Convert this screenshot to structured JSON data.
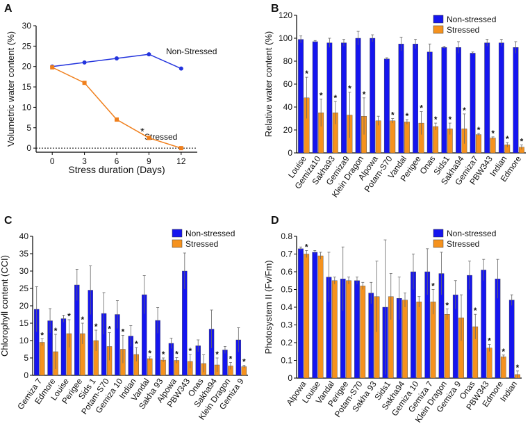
{
  "colors": {
    "nonstressed": "#1515ee",
    "stressed": "#f5921e",
    "line_non": "#2233dd",
    "line_str": "#f07f1c"
  },
  "chart_data": [
    {
      "panel": "A",
      "type": "line",
      "xlabel": "Stress duration (Days)",
      "ylabel": "Volumetric water content (%)",
      "x": [
        0,
        3,
        6,
        9,
        12
      ],
      "xticks": [
        "0",
        "3",
        "6",
        "9",
        "12"
      ],
      "yticks": [
        "0",
        "5",
        "10",
        "15",
        "20",
        "25",
        "30"
      ],
      "xlim": [
        -1.5,
        13.5
      ],
      "ylim": [
        -1,
        30
      ],
      "series": [
        {
          "name": "Non-Stressed",
          "values": [
            20,
            21,
            22,
            23,
            19.5
          ]
        },
        {
          "name": "Stressed",
          "values": [
            19.8,
            16,
            7,
            2.5,
            0
          ]
        }
      ],
      "annotation": "*"
    },
    {
      "panel": "B",
      "type": "bar",
      "ylabel": "Relative water content (%)",
      "ylim": [
        0,
        120
      ],
      "yticks": [
        "0",
        "20",
        "40",
        "60",
        "80",
        "100",
        "120"
      ],
      "legend": [
        "Non-stressed",
        "Stressed"
      ],
      "categories": [
        "Louise",
        "Gemiza10",
        "Sakha93",
        "Gemiza9",
        "Klein Dragon",
        "Alpowa",
        "Potam-S70",
        "Vandal",
        "Perigee",
        "Onas",
        "Sids1",
        "Sakha94",
        "Gemiza7",
        "PBW343",
        "Indian",
        "Edmore"
      ],
      "series": [
        {
          "name": "Non-stressed",
          "values": [
            99,
            97,
            96,
            96,
            100,
            100,
            82,
            95,
            95,
            88,
            92,
            92,
            87,
            96,
            96,
            92
          ],
          "errors": [
            3,
            1,
            4,
            3,
            6,
            3,
            1,
            6,
            4,
            7,
            1,
            5,
            1,
            3,
            3,
            5
          ]
        },
        {
          "name": "Stressed",
          "values": [
            48,
            35,
            35,
            33,
            32,
            28,
            28,
            27,
            26,
            23,
            21,
            21,
            16,
            13,
            7,
            5
          ],
          "errors": [
            18,
            12,
            10,
            20,
            16,
            4,
            2,
            2,
            10,
            3,
            5,
            13,
            1,
            1,
            2,
            2
          ]
        }
      ],
      "significant": [
        "*",
        "*",
        "*",
        "*",
        "*",
        "",
        "*",
        "*",
        "*",
        "*",
        "*",
        "*",
        "*",
        "*",
        "*",
        "*"
      ]
    },
    {
      "panel": "C",
      "type": "bar",
      "ylabel": "Chlorophyll content (CCI)",
      "ylim": [
        0,
        40
      ],
      "yticks": [
        "0",
        "5",
        "10",
        "15",
        "20",
        "25",
        "30",
        "35",
        "40"
      ],
      "legend": [
        "Non-stressed",
        "Stressed"
      ],
      "categories": [
        "Gemiza 7",
        "Edmore",
        "Louise",
        "Perigee",
        "Sids 1",
        "Potam-S70",
        "Gemiza 10",
        "Indian",
        "Vandal",
        "Sakha 93",
        "Alpowa",
        "PBW343",
        "Onas",
        "Sakha94",
        "Klein Dragon",
        "Gemiza 9"
      ],
      "series": [
        {
          "name": "Non-stressed",
          "values": [
            19,
            15.7,
            16.3,
            26,
            24.5,
            17.8,
            17.5,
            11.3,
            23.2,
            15.8,
            9.2,
            30,
            8.5,
            13.3,
            7.3,
            10.2
          ],
          "errors": [
            6.5,
            3.5,
            1,
            4.5,
            7,
            6,
            4,
            3,
            5.5,
            3.7,
            1.5,
            5.2,
            1.7,
            5.5,
            1,
            3.5
          ]
        },
        {
          "name": "Stressed",
          "values": [
            9.5,
            6.8,
            12,
            12,
            10,
            8.3,
            7.5,
            6,
            4.8,
            4.4,
            4.3,
            4,
            3.4,
            3,
            2.7,
            2.5
          ],
          "errors": [
            1,
            5,
            4,
            3,
            3,
            4,
            4,
            2,
            0.5,
            0.6,
            0.8,
            2,
            2.5,
            2,
            1,
            0.4
          ]
        }
      ],
      "significant": [
        "*",
        "*",
        "*",
        "*",
        "*",
        "*",
        "*",
        "*",
        "*",
        "*",
        "*",
        "*",
        "",
        "*",
        "*",
        "*"
      ]
    },
    {
      "panel": "D",
      "type": "bar",
      "ylabel": "Photosystem II (Fv/Fm)",
      "ylim": [
        0,
        0.8
      ],
      "yticks": [
        "0",
        "0.1",
        "0.2",
        "0.3",
        "0.4",
        "0.5",
        "0.6",
        "0.7",
        "0.8"
      ],
      "legend": [
        "Non-stressed",
        "Stressed"
      ],
      "categories": [
        "Alpowa",
        "Louise",
        "Vandal",
        "Perigee",
        "Potam-S70",
        "Sakha 93",
        "Sids1",
        "Sakha94",
        "Gemiza 10",
        "Gemiza 7",
        "Klein Dragon",
        "Gemiza 9",
        "Onas",
        "PBW343",
        "Edmore",
        "Indian"
      ],
      "series": [
        {
          "name": "Non-stressed",
          "values": [
            0.73,
            0.71,
            0.57,
            0.56,
            0.55,
            0.48,
            0.4,
            0.45,
            0.6,
            0.6,
            0.59,
            0.47,
            0.58,
            0.61,
            0.56,
            0.44
          ],
          "errors": [
            0.01,
            0.01,
            0.14,
            0.18,
            0.02,
            0.06,
            0.38,
            0.12,
            0.1,
            0.13,
            0.12,
            0.08,
            0.08,
            0.06,
            0.11,
            0.03
          ]
        },
        {
          "name": "Stressed",
          "values": [
            0.7,
            0.69,
            0.55,
            0.55,
            0.52,
            0.46,
            0.46,
            0.44,
            0.43,
            0.43,
            0.36,
            0.34,
            0.29,
            0.17,
            0.12,
            0.02
          ],
          "errors": [
            0.02,
            0.02,
            0.02,
            0.02,
            0.02,
            0.2,
            0.13,
            0.04,
            0.03,
            0.07,
            0.03,
            0.13,
            0.07,
            0.02,
            0.01,
            0.02
          ]
        }
      ],
      "significant": [
        "*",
        "",
        "",
        "",
        "",
        "",
        "",
        "",
        "",
        "*",
        "*",
        "",
        "*",
        "*",
        "*",
        "*"
      ]
    }
  ]
}
